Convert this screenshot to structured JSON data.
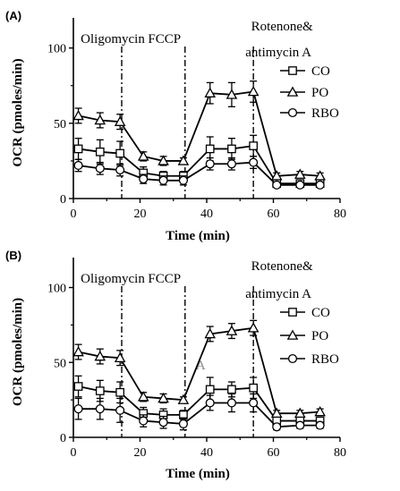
{
  "chart_data": [
    {
      "type": "line",
      "panel_label": "(A)",
      "xlabel": "Time (min)",
      "ylabel": "OCR (pmoles/min)",
      "xlim": [
        0,
        80
      ],
      "ylim": [
        0,
        120
      ],
      "x_ticks": [
        "0",
        "20",
        "40",
        "60",
        "80"
      ],
      "y_ticks": [
        "0",
        "50",
        "100"
      ],
      "legend_position": "right",
      "grid": false,
      "annotations": [
        {
          "text": "Oligomycin",
          "x": 14.5
        },
        {
          "text": "FCCP",
          "x": 33.5
        },
        {
          "text": "Rotenone&",
          "x": 54
        },
        {
          "text": "antimycin A",
          "x": 54
        }
      ],
      "injection_lines": [
        14.5,
        33.5,
        54
      ],
      "x": [
        1.5,
        8,
        14,
        21,
        27,
        33,
        41,
        47.5,
        54,
        61,
        68,
        74
      ],
      "series": [
        {
          "name": "CO",
          "marker": "square",
          "values": [
            33,
            31,
            30,
            17,
            15,
            15,
            33,
            33,
            35,
            10,
            10,
            10
          ],
          "error": [
            7,
            8,
            8,
            4,
            3,
            3,
            8,
            7,
            7,
            2,
            2,
            2
          ]
        },
        {
          "name": "PO",
          "marker": "triangle",
          "values": [
            55,
            52,
            51,
            28,
            25,
            25,
            70,
            69,
            71,
            15,
            16,
            15
          ],
          "error": [
            5,
            5,
            5,
            3,
            3,
            2,
            7,
            8,
            7,
            2,
            2,
            2
          ]
        },
        {
          "name": "RBO",
          "marker": "circle",
          "values": [
            22,
            20,
            19,
            13,
            12,
            12,
            23,
            23,
            24,
            9,
            9,
            9
          ],
          "error": [
            4,
            4,
            4,
            3,
            3,
            3,
            4,
            4,
            4,
            1,
            1,
            1
          ]
        }
      ]
    },
    {
      "type": "line",
      "panel_label": "(B)",
      "xlabel": "Time (min)",
      "ylabel": "OCR (pmoles/min)",
      "xlim": [
        0,
        80
      ],
      "ylim": [
        0,
        120
      ],
      "x_ticks": [
        "0",
        "20",
        "40",
        "60",
        "80"
      ],
      "y_ticks": [
        "0",
        "50",
        "100"
      ],
      "legend_position": "right",
      "grid": false,
      "annotations": [
        {
          "text": "Oligomycin",
          "x": 14.5
        },
        {
          "text": "FCCP",
          "x": 33.5
        },
        {
          "text": "Rotenone&",
          "x": 54
        },
        {
          "text": "antimycin A",
          "x": 54
        },
        {
          "text": "A",
          "x": 39
        }
      ],
      "injection_lines": [
        14.5,
        33.5,
        54
      ],
      "x": [
        1.5,
        8,
        14,
        21,
        27,
        33,
        41,
        47.5,
        54,
        61,
        68,
        74
      ],
      "series": [
        {
          "name": "CO",
          "marker": "square",
          "values": [
            34,
            31,
            30,
            16,
            15,
            15,
            32,
            32,
            33,
            11,
            11,
            11
          ],
          "error": [
            7,
            7,
            7,
            4,
            4,
            3,
            8,
            5,
            7,
            2,
            2,
            2
          ]
        },
        {
          "name": "PO",
          "marker": "triangle",
          "values": [
            57,
            54,
            53,
            27,
            26,
            25,
            69,
            71,
            73,
            16,
            16,
            17
          ],
          "error": [
            5,
            5,
            5,
            3,
            3,
            2,
            5,
            5,
            5,
            2,
            2,
            2
          ]
        },
        {
          "name": "RBO",
          "marker": "circle",
          "values": [
            19,
            19,
            18,
            11,
            10,
            9,
            23,
            23,
            23,
            7,
            8,
            8
          ],
          "error": [
            7,
            7,
            8,
            4,
            4,
            4,
            5,
            6,
            6,
            2,
            2,
            2
          ]
        }
      ]
    }
  ]
}
